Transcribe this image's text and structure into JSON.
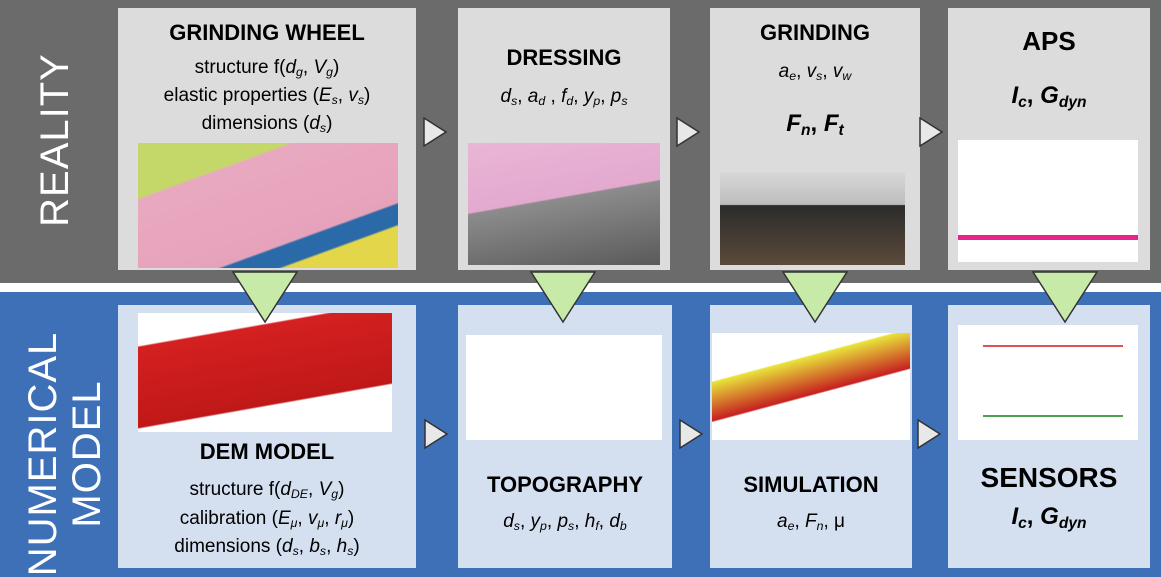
{
  "bands": [
    {
      "label": "REALITY",
      "boxes": [
        {
          "title": "GRINDING WHEEL",
          "lines": [
            [
              "structure f(",
              {
                "v": "d",
                "sub": "g"
              },
              ", ",
              {
                "v": "V",
                "sub": "g"
              },
              ")"
            ],
            [
              "elastic properties (",
              {
                "v": "E",
                "sub": "s"
              },
              ", ",
              {
                "v": "v",
                "sub": "s"
              },
              ")"
            ],
            [
              "dimensions (",
              {
                "v": "d",
                "sub": "s"
              },
              ")"
            ]
          ]
        },
        {
          "title": "DRESSING",
          "lines": [
            [
              {
                "v": "d",
                "sub": "s"
              },
              ", ",
              {
                "v": "a",
                "sub": "d"
              },
              " , ",
              {
                "v": "f",
                "sub": "d"
              },
              ", ",
              {
                "v": "y",
                "sub": "p"
              },
              ", ",
              {
                "v": "p",
                "sub": "s"
              }
            ]
          ]
        },
        {
          "title": "GRINDING",
          "lines": [
            [
              {
                "v": "a",
                "sub": "e"
              },
              ", ",
              {
                "v": "v",
                "sub": "s"
              },
              ", ",
              {
                "v": "v",
                "sub": "w"
              }
            ],
            [
              {
                "v": "F",
                "sub": "n"
              },
              ", ",
              {
                "v": "F",
                "sub": "t"
              }
            ]
          ]
        },
        {
          "title": "APS",
          "lines": [
            [
              {
                "v": "I",
                "sub": "c"
              },
              ", ",
              {
                "v": "G",
                "sub": "dyn"
              }
            ]
          ]
        }
      ]
    },
    {
      "label": "NUMERICAL MODEL",
      "boxes": [
        {
          "title": "DEM MODEL",
          "lines": [
            [
              "structure f(",
              {
                "v": "d",
                "sub": "DE"
              },
              ", ",
              {
                "v": "V",
                "sub": "g"
              },
              ")"
            ],
            [
              "calibration (",
              {
                "v": "E",
                "sub": "μ"
              },
              ", ",
              {
                "v": "v",
                "sub": "μ"
              },
              ", ",
              {
                "v": "r",
                "sub": "μ"
              },
              ")"
            ],
            [
              "dimensions (",
              {
                "v": "d",
                "sub": "s"
              },
              ", ",
              {
                "v": "b",
                "sub": "s"
              },
              ", ",
              {
                "v": "h",
                "sub": "s"
              },
              ")"
            ]
          ]
        },
        {
          "title": "TOPOGRAPHY",
          "lines": [
            [
              {
                "v": "d",
                "sub": "s"
              },
              ", ",
              {
                "v": "y",
                "sub": "p"
              },
              ", ",
              {
                "v": "p",
                "sub": "s"
              },
              ", ",
              {
                "v": "h",
                "sub": "f"
              },
              ", ",
              {
                "v": "d",
                "sub": "b"
              }
            ]
          ]
        },
        {
          "title": "SIMULATION",
          "lines": [
            [
              {
                "v": "a",
                "sub": "e"
              },
              ", ",
              {
                "v": "F",
                "sub": "n"
              },
              ",  μ"
            ]
          ]
        },
        {
          "title": "SENSORS",
          "lines": [
            [
              {
                "v": "I",
                "sub": "c"
              },
              ", ",
              {
                "v": "G",
                "sub": "dyn"
              }
            ]
          ]
        }
      ]
    }
  ]
}
